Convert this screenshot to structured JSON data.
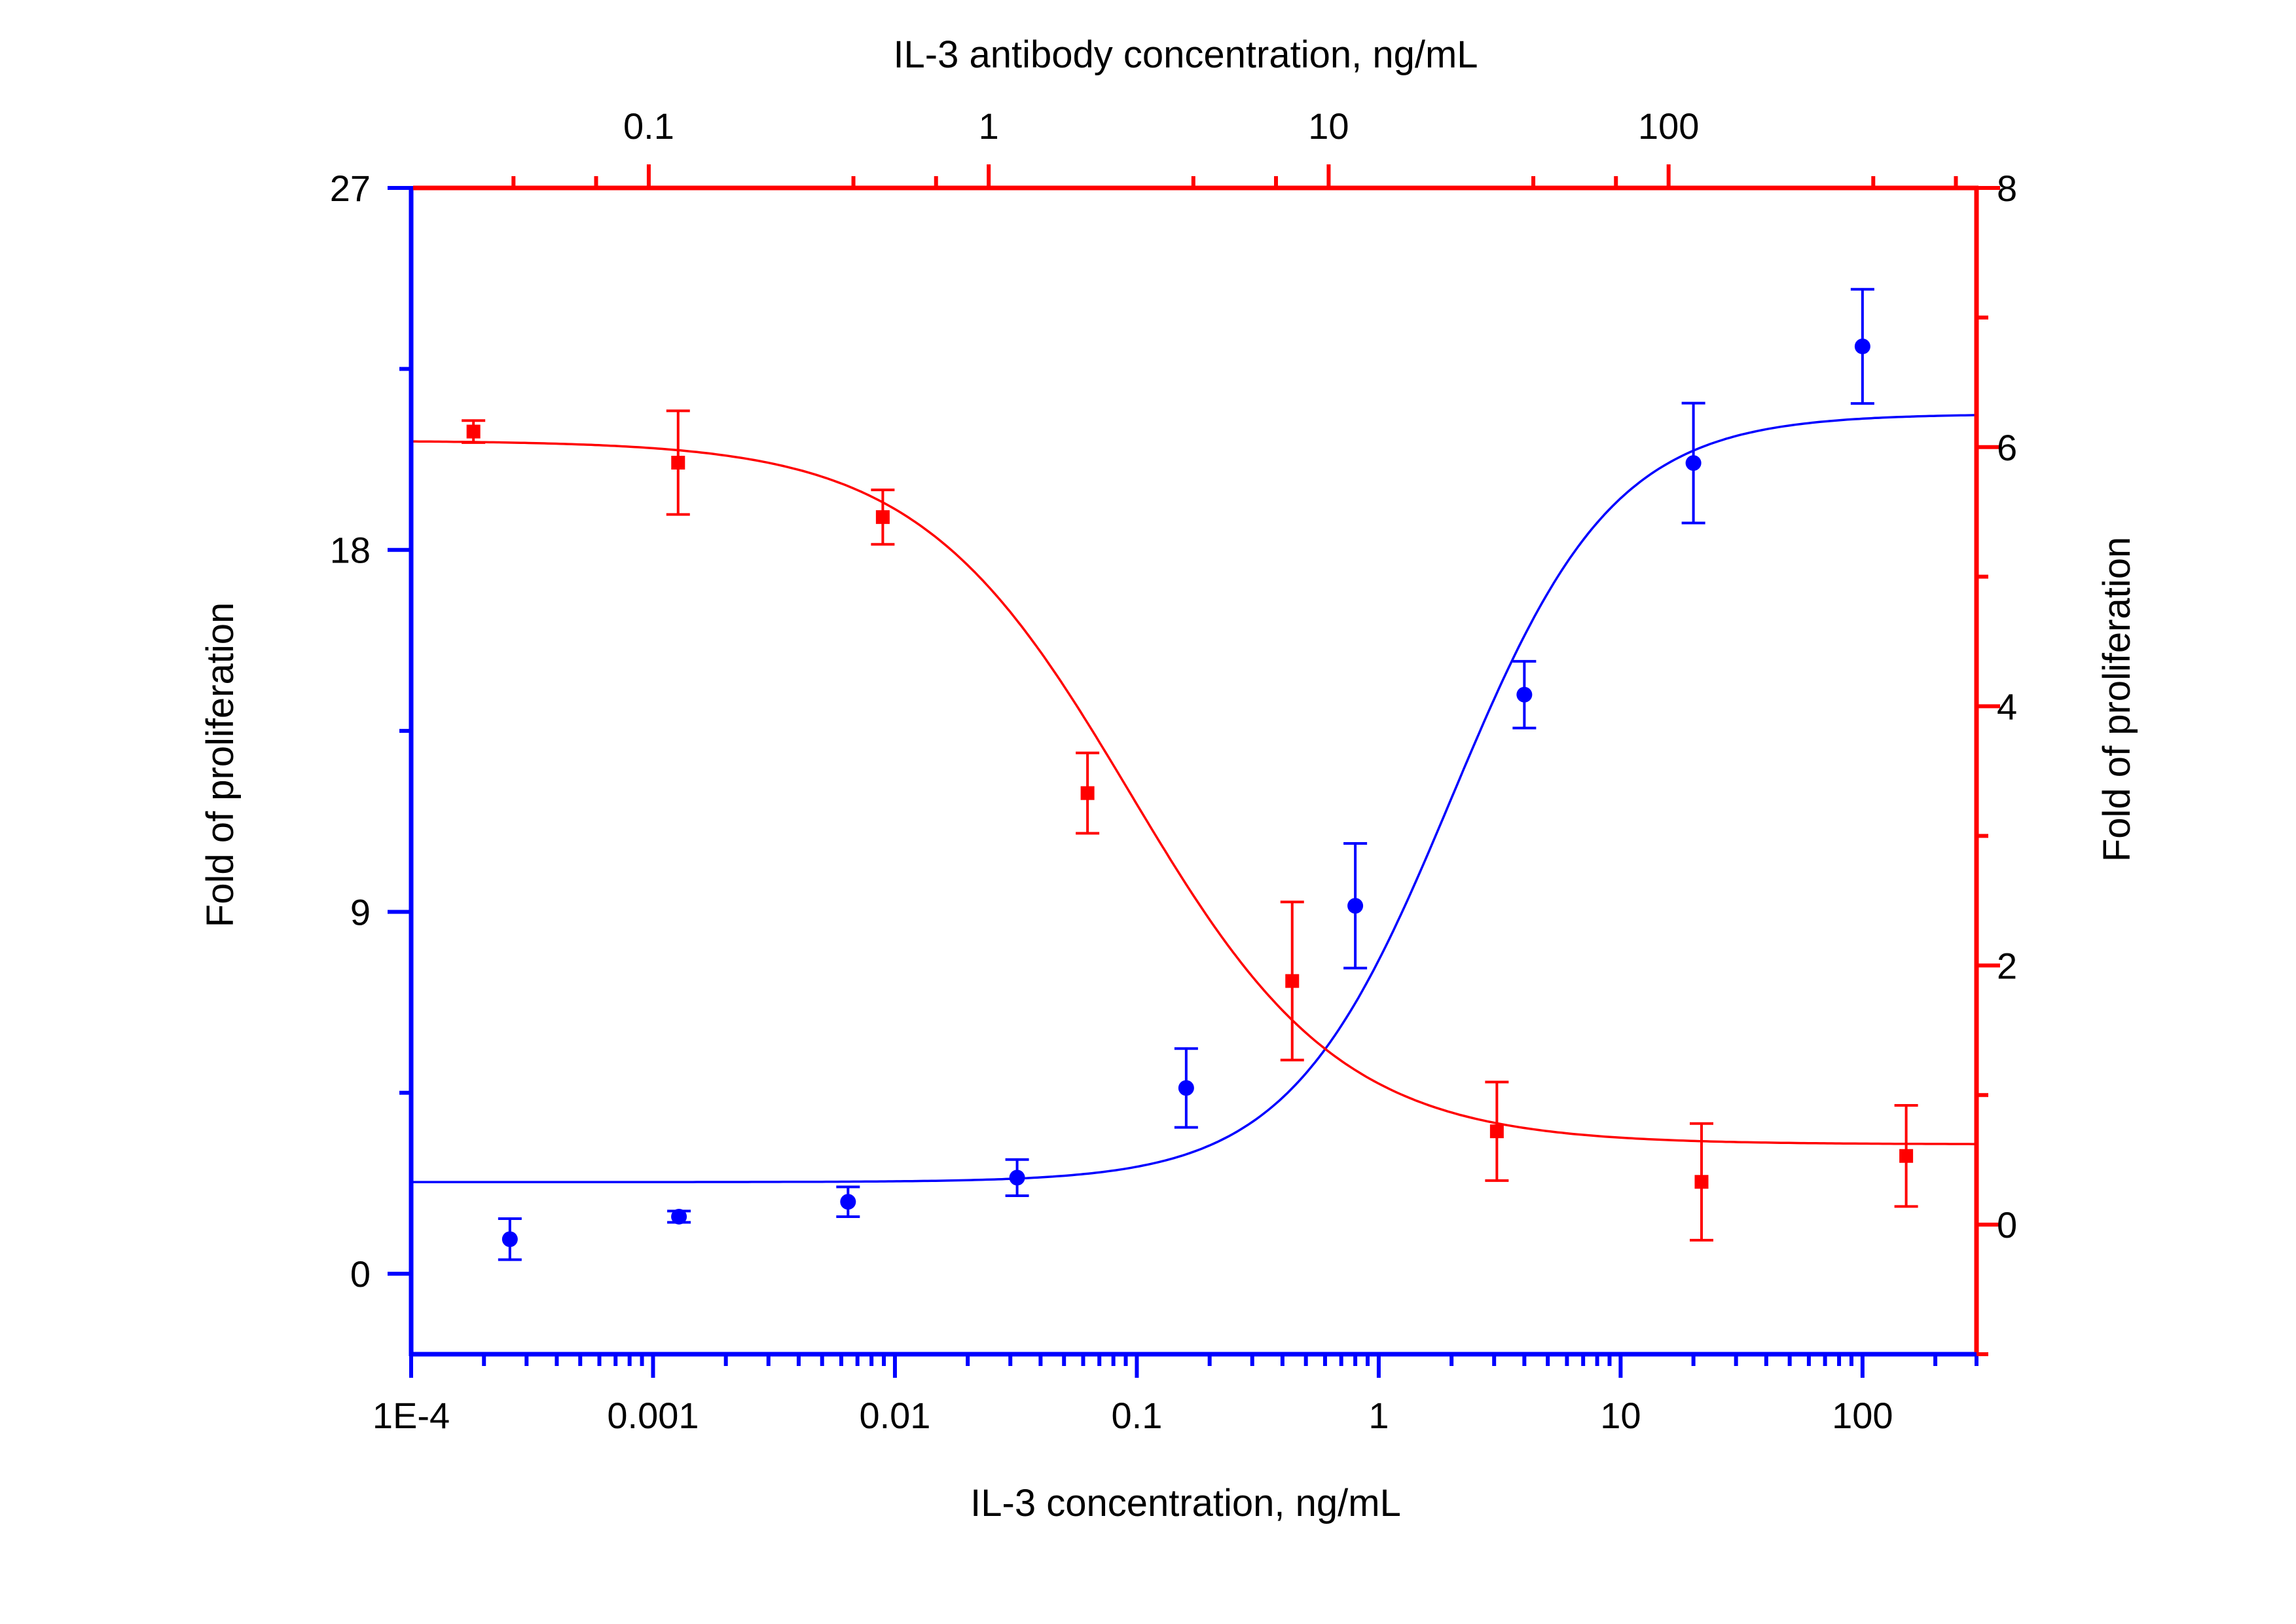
{
  "chart_data": {
    "type": "scatter",
    "title": "",
    "xlabel": "IL-3 concentration, ng/mL",
    "x2label": "IL-3 antibody concentration, ng/mL",
    "ylabel": "Fold of proliferation",
    "y2label": "Fold of proliferation",
    "x_scale": "log",
    "xlim": [
      0.0001,
      296
    ],
    "x2lim": [
      0.02,
      805
    ],
    "ylim": [
      -2,
      27
    ],
    "y2lim": [
      -1,
      8
    ],
    "grid": false,
    "legend": "none",
    "x_ticks": [
      {
        "value": 0.0001,
        "label": "1E-4"
      },
      {
        "value": 0.001,
        "label": "0.001"
      },
      {
        "value": 0.01,
        "label": "0.01"
      },
      {
        "value": 0.1,
        "label": "0.1"
      },
      {
        "value": 1,
        "label": "1"
      },
      {
        "value": 10,
        "label": "10"
      },
      {
        "value": 100,
        "label": "100"
      }
    ],
    "x2_ticks": [
      {
        "value": 0.1,
        "label": "0.1"
      },
      {
        "value": 1,
        "label": "1"
      },
      {
        "value": 10,
        "label": "10"
      },
      {
        "value": 100,
        "label": "100"
      }
    ],
    "y_ticks": [
      {
        "value": 0,
        "label": "0"
      },
      {
        "value": 9,
        "label": "9"
      },
      {
        "value": 18,
        "label": "18"
      },
      {
        "value": 27,
        "label": "27"
      }
    ],
    "y2_ticks": [
      {
        "value": 0,
        "label": "0"
      },
      {
        "value": 2,
        "label": "2"
      },
      {
        "value": 4,
        "label": "4"
      },
      {
        "value": 6,
        "label": "6"
      },
      {
        "value": 8,
        "label": "8"
      }
    ],
    "series": [
      {
        "name": "IL-3",
        "axis": "bottom-left",
        "color": "#0000ff",
        "marker": "circle",
        "x": [
          0.000256,
          0.00128,
          0.0064,
          0.032,
          0.16,
          0.8,
          4,
          20,
          100
        ],
        "y": [
          0.86,
          1.42,
          1.79,
          2.39,
          4.62,
          9.15,
          14.4,
          20.16,
          23.06
        ],
        "yerr": [
          0.51,
          0.14,
          0.37,
          0.45,
          0.98,
          1.55,
          0.83,
          1.49,
          1.42
        ],
        "fit": {
          "model": "4PL",
          "bottom": 2.28,
          "top": 21.38,
          "ec50": 2.0,
          "hill": 1.3
        }
      },
      {
        "name": "IL-3 antibody",
        "axis": "top-right",
        "color": "#ff0000",
        "marker": "square",
        "x": [
          0.0305,
          0.122,
          0.488,
          1.953,
          7.8125,
          31.25,
          125,
          500
        ],
        "y": [
          6.12,
          5.88,
          5.46,
          3.33,
          1.88,
          0.72,
          0.33,
          0.53
        ],
        "yerr": [
          0.085,
          0.4,
          0.21,
          0.31,
          0.61,
          0.38,
          0.45,
          0.39
        ],
        "fit": {
          "model": "4PL",
          "bottom": 0.62,
          "top": 6.05,
          "ec50": 2.6,
          "hill": 1.4
        }
      }
    ]
  }
}
